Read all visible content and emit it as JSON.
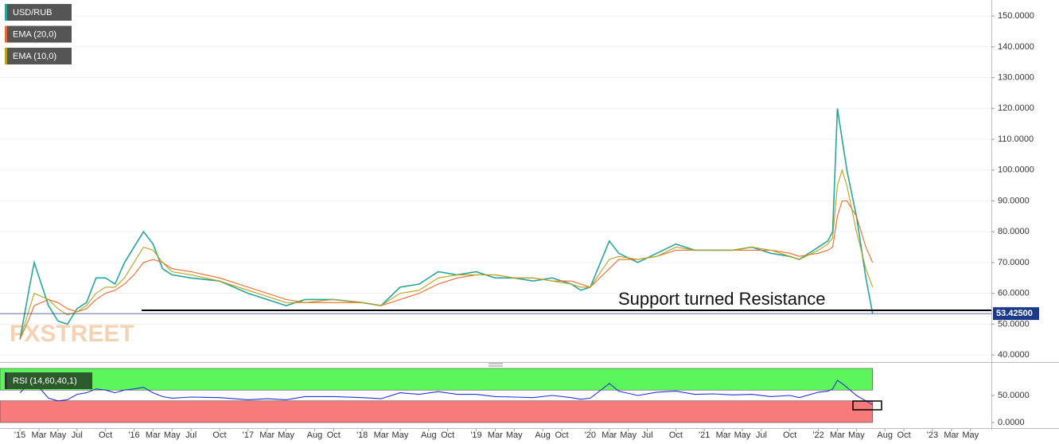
{
  "chart_data": [
    {
      "type": "line",
      "legend": "top-left",
      "grid": true,
      "watermark": "FXSTREET",
      "x": [
        0,
        1,
        1.5,
        3,
        4,
        5,
        6,
        7,
        8,
        9,
        10,
        11,
        12,
        13,
        14,
        15,
        16,
        18,
        21,
        24,
        26,
        28,
        30,
        33,
        36,
        38,
        40,
        42,
        44,
        46,
        48,
        50,
        52,
        54,
        56,
        58,
        59,
        60,
        62,
        63,
        65,
        67,
        69,
        71,
        73,
        75,
        77,
        79,
        81,
        82,
        84,
        85,
        85.5,
        86,
        86.5,
        87,
        88,
        89,
        89.7
      ],
      "series": [
        {
          "name": "USD/RUB",
          "color": "#26a69a",
          "values": [
            45,
            62,
            70,
            56,
            51,
            50,
            55,
            57,
            65,
            65,
            63,
            70,
            75,
            80,
            76,
            68,
            66,
            65,
            64,
            60,
            58,
            56,
            58,
            58,
            57,
            56,
            62,
            63,
            67,
            66,
            67,
            65,
            65,
            64,
            65,
            63,
            61,
            62,
            77,
            73,
            70,
            73,
            76,
            74,
            74,
            74,
            75,
            73,
            72,
            71,
            75,
            77,
            80,
            120,
            110,
            100,
            85,
            65,
            53.425
          ]
        },
        {
          "name": "EMA (20,0)",
          "color": "#e8692f",
          "values": [
            45,
            52,
            56,
            58,
            57,
            55,
            54,
            55,
            58,
            60,
            61,
            63,
            66,
            70,
            71,
            70,
            68,
            67,
            65,
            62,
            60,
            58,
            57,
            57,
            57,
            56,
            58,
            60,
            63,
            65,
            66,
            66,
            65,
            65,
            64,
            64,
            63,
            62,
            68,
            71,
            71,
            72,
            74,
            74,
            74,
            74,
            74,
            74,
            73,
            72,
            73,
            74,
            75,
            85,
            90,
            90,
            85,
            75,
            70
          ]
        },
        {
          "name": "EMA (10,0)",
          "color": "#b8a21c",
          "values": [
            45,
            55,
            60,
            58,
            55,
            53,
            54,
            56,
            60,
            62,
            62,
            65,
            70,
            75,
            74,
            70,
            67,
            66,
            64,
            61,
            59,
            57,
            57,
            58,
            57,
            56,
            60,
            61,
            65,
            66,
            66,
            66,
            65,
            65,
            64,
            63,
            62,
            62,
            71,
            72,
            71,
            72,
            75,
            74,
            74,
            74,
            75,
            74,
            72,
            71,
            74,
            76,
            78,
            95,
            100,
            95,
            80,
            68,
            62
          ]
        }
      ],
      "xlim": [
        -2.1,
        102.2
      ],
      "ylim": [
        37.7,
        155.2
      ],
      "yticks": [
        {
          "value": 40,
          "label": "40.0000"
        },
        {
          "value": 50,
          "label": "50.0000"
        },
        {
          "value": 60,
          "label": "60.0000"
        },
        {
          "value": 70,
          "label": "70.0000"
        },
        {
          "value": 80,
          "label": "80.0000"
        },
        {
          "value": 90,
          "label": "90.0000"
        },
        {
          "value": 100,
          "label": "100.0000"
        },
        {
          "value": 110,
          "label": "110.0000"
        },
        {
          "value": 120,
          "label": "120.0000"
        },
        {
          "value": 130,
          "label": "130.0000"
        },
        {
          "value": 140,
          "label": "140.0000"
        },
        {
          "value": 150,
          "label": "150.0000"
        }
      ],
      "last_price": {
        "value": 53.425,
        "label": "53.42500"
      },
      "annotation": {
        "text": "Support turned Resistance",
        "value": 54.5,
        "x_start": 12.8
      }
    },
    {
      "type": "line",
      "title": "RSI (14,60,40,1)",
      "upper": 60,
      "lower": 40,
      "x": [
        0,
        1,
        1.5,
        3,
        4,
        5,
        6,
        7,
        8,
        9,
        10,
        11,
        12,
        13,
        14,
        15,
        16,
        18,
        21,
        24,
        26,
        28,
        30,
        33,
        36,
        38,
        40,
        42,
        44,
        46,
        48,
        50,
        52,
        54,
        56,
        58,
        59,
        60,
        62,
        63,
        65,
        67,
        69,
        71,
        73,
        75,
        77,
        79,
        81,
        82,
        84,
        85,
        85.5,
        86,
        86.5,
        87,
        88,
        89,
        89.7
      ],
      "series": [
        {
          "color": "#2433d6",
          "values": [
            55,
            72,
            75,
            45,
            40,
            42,
            52,
            55,
            62,
            60,
            55,
            60,
            62,
            65,
            55,
            48,
            45,
            47,
            46,
            42,
            44,
            42,
            48,
            48,
            46,
            44,
            55,
            52,
            57,
            52,
            52,
            48,
            47,
            46,
            50,
            46,
            43,
            45,
            72,
            58,
            50,
            56,
            58,
            52,
            53,
            51,
            52,
            48,
            50,
            46,
            56,
            58,
            62,
            78,
            72,
            65,
            50,
            40,
            33
          ]
        }
      ],
      "xlim": [
        -2.1,
        102.2
      ],
      "ylim": [
        0,
        100
      ],
      "yticks": [
        {
          "value": 0,
          "label": "0.0000"
        },
        {
          "value": 50,
          "label": "50.0000"
        }
      ],
      "xticks": [
        {
          "value": 0,
          "label": "'15"
        },
        {
          "value": 2,
          "label": "Mar"
        },
        {
          "value": 4,
          "label": "May"
        },
        {
          "value": 6,
          "label": "Jul"
        },
        {
          "value": 9,
          "label": "Oct"
        },
        {
          "value": 12,
          "label": "'16"
        },
        {
          "value": 14,
          "label": "Mar"
        },
        {
          "value": 16,
          "label": "May"
        },
        {
          "value": 18,
          "label": "Jul"
        },
        {
          "value": 21,
          "label": "Oct"
        },
        {
          "value": 24,
          "label": "'17"
        },
        {
          "value": 26,
          "label": "Mar"
        },
        {
          "value": 28,
          "label": "May"
        },
        {
          "value": 31,
          "label": "Aug"
        },
        {
          "value": 33,
          "label": "Oct"
        },
        {
          "value": 36,
          "label": "'18"
        },
        {
          "value": 38,
          "label": "Mar"
        },
        {
          "value": 40,
          "label": "May"
        },
        {
          "value": 43,
          "label": "Aug"
        },
        {
          "value": 45,
          "label": "Oct"
        },
        {
          "value": 48,
          "label": "'19"
        },
        {
          "value": 50,
          "label": "Mar"
        },
        {
          "value": 52,
          "label": "May"
        },
        {
          "value": 55,
          "label": "Aug"
        },
        {
          "value": 57,
          "label": "Oct"
        },
        {
          "value": 60,
          "label": "'20"
        },
        {
          "value": 62,
          "label": "Mar"
        },
        {
          "value": 64,
          "label": "May"
        },
        {
          "value": 66,
          "label": "Jul"
        },
        {
          "value": 69,
          "label": "Oct"
        },
        {
          "value": 72,
          "label": "'21"
        },
        {
          "value": 74,
          "label": "Mar"
        },
        {
          "value": 76,
          "label": "May"
        },
        {
          "value": 78,
          "label": "Jul"
        },
        {
          "value": 81,
          "label": "Oct"
        },
        {
          "value": 84,
          "label": "'22"
        },
        {
          "value": 86,
          "label": "Mar"
        },
        {
          "value": 88,
          "label": "May"
        },
        {
          "value": 91,
          "label": "Aug"
        },
        {
          "value": 93,
          "label": "Oct"
        },
        {
          "value": 96,
          "label": "'23"
        },
        {
          "value": 98,
          "label": "Mar"
        },
        {
          "value": 100,
          "label": "May"
        }
      ]
    }
  ]
}
